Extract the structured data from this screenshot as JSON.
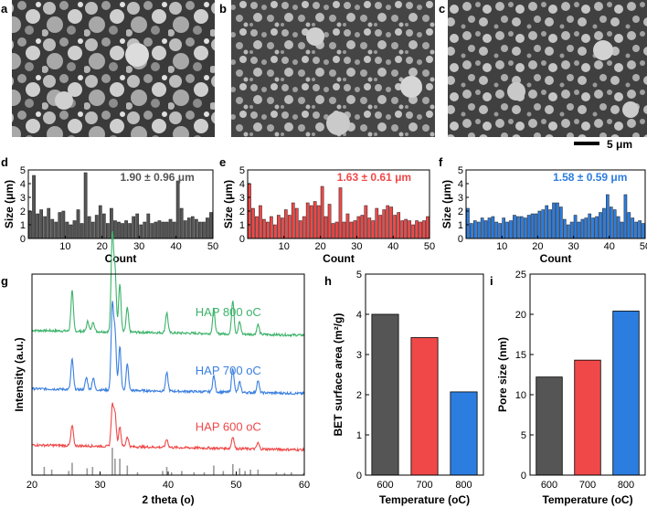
{
  "panel_labels": {
    "a": "a",
    "b": "b",
    "c": "c",
    "d": "d",
    "e": "e",
    "f": "f",
    "g": "g",
    "h": "h",
    "i": "i"
  },
  "scale_bar": "5 μm",
  "colors": {
    "p600": "#555555",
    "p700": "#f04848",
    "p800": "#2c7de0",
    "xrd700": "#3a7fe0",
    "xrd800": "#3cb36a",
    "ref": "#999999",
    "sem_bg": "#3a3a3a"
  },
  "chart_data": [
    {
      "id": "d",
      "type": "bar",
      "title": "",
      "xlabel": "Count",
      "ylabel": "Size (μm)",
      "xlim": [
        0,
        50
      ],
      "ylim": [
        0,
        5
      ],
      "xticks": [
        "10",
        "20",
        "30",
        "40",
        "50"
      ],
      "yticks": [
        "0",
        "1",
        "2",
        "3",
        "4",
        "5"
      ],
      "annotation": "1.90 ± 0.96 μm",
      "color": "#555555",
      "values": [
        2.0,
        4.6,
        1.8,
        2.1,
        1.6,
        2.2,
        1.4,
        1.2,
        1.9,
        2.0,
        1.2,
        1.0,
        1.3,
        2.1,
        1.1,
        4.8,
        1.6,
        1.2,
        1.7,
        2.4,
        1.8,
        1.1,
        2.2,
        1.3,
        1.2,
        1.1,
        1.3,
        1.1,
        1.6,
        1.8,
        1.0,
        1.2,
        1.8,
        1.1,
        1.2,
        1.3,
        1.2,
        1.2,
        1.4,
        1.2,
        4.2,
        2.2,
        1.3,
        1.5,
        1.6,
        1.4,
        1.2,
        1.2,
        1.5,
        1.9
      ]
    },
    {
      "id": "e",
      "type": "bar",
      "title": "",
      "xlabel": "Count",
      "ylabel": "Size (μm)",
      "xlim": [
        0,
        50
      ],
      "ylim": [
        0,
        5
      ],
      "xticks": [
        "10",
        "20",
        "30",
        "40",
        "50"
      ],
      "yticks": [
        "0",
        "1",
        "2",
        "3",
        "4",
        "5"
      ],
      "annotation": "1.63 ± 0.61 μm",
      "color": "#f04848",
      "values": [
        4.0,
        2.2,
        1.6,
        2.4,
        1.4,
        1.2,
        1.6,
        1.0,
        1.7,
        1.5,
        2.1,
        1.7,
        2.6,
        2.2,
        1.3,
        1.6,
        2.6,
        2.4,
        2.7,
        2.4,
        3.8,
        1.6,
        2.5,
        1.1,
        1.2,
        3.7,
        1.2,
        1.8,
        1.2,
        1.3,
        1.6,
        1.7,
        2.4,
        1.5,
        1.3,
        2.2,
        1.7,
        2.1,
        2.4,
        2.3,
        1.7,
        1.9,
        1.3,
        1.4,
        1.3,
        1.0,
        1.3,
        1.2,
        1.3,
        1.6
      ]
    },
    {
      "id": "f",
      "type": "bar",
      "title": "",
      "xlabel": "Count",
      "ylabel": "Size (μm)",
      "xlim": [
        0,
        50
      ],
      "ylim": [
        0,
        5
      ],
      "xticks": [
        "10",
        "20",
        "30",
        "40",
        "50"
      ],
      "yticks": [
        "0",
        "1",
        "2",
        "3",
        "4",
        "5"
      ],
      "annotation": "1.58 ± 0.59 μm",
      "color": "#2c7de0",
      "values": [
        2.2,
        1.1,
        1.3,
        1.2,
        1.5,
        1.3,
        1.5,
        1.6,
        1.2,
        1.1,
        1.5,
        1.2,
        1.3,
        1.7,
        1.6,
        1.6,
        1.5,
        1.7,
        1.8,
        1.8,
        2.0,
        2.1,
        2.4,
        2.1,
        2.6,
        2.6,
        2.3,
        1.4,
        1.0,
        1.2,
        1.7,
        1.2,
        1.4,
        1.5,
        1.8,
        1.5,
        1.6,
        1.9,
        2.2,
        3.2,
        2.3,
        2.1,
        1.6,
        1.2,
        3.2,
        1.9,
        1.5,
        1.2,
        1.3,
        1.1
      ]
    },
    {
      "id": "g",
      "type": "line",
      "title": "",
      "xlabel": "2 theta (o)",
      "ylabel": "Intensity (a.u.)",
      "xlim": [
        20,
        60
      ],
      "xticks": [
        "20",
        "30",
        "40",
        "50",
        "60"
      ],
      "series": [
        {
          "name": "HAP 800 oC",
          "color": "#3cb36a",
          "offset": 0.72,
          "peaks": [
            [
              25.9,
              0.2
            ],
            [
              28.2,
              0.05
            ],
            [
              29.0,
              0.05
            ],
            [
              31.8,
              0.48
            ],
            [
              32.2,
              0.3
            ],
            [
              32.9,
              0.24
            ],
            [
              34.0,
              0.12
            ],
            [
              39.8,
              0.1
            ],
            [
              46.7,
              0.12
            ],
            [
              49.5,
              0.17
            ],
            [
              50.5,
              0.06
            ],
            [
              53.2,
              0.05
            ]
          ]
        },
        {
          "name": "HAP 700 oC",
          "color": "#3a7fe0",
          "offset": 0.43,
          "peaks": [
            [
              25.9,
              0.15
            ],
            [
              28.0,
              0.06
            ],
            [
              29.0,
              0.06
            ],
            [
              31.8,
              0.42
            ],
            [
              32.2,
              0.28
            ],
            [
              32.9,
              0.22
            ],
            [
              34.0,
              0.13
            ],
            [
              39.8,
              0.09
            ],
            [
              46.7,
              0.08
            ],
            [
              49.5,
              0.12
            ],
            [
              50.5,
              0.05
            ],
            [
              53.2,
              0.06
            ]
          ]
        },
        {
          "name": "HAP 600 oC",
          "color": "#f04848",
          "offset": 0.15,
          "peaks": [
            [
              25.9,
              0.1
            ],
            [
              31.8,
              0.2
            ],
            [
              32.2,
              0.16
            ],
            [
              32.9,
              0.1
            ],
            [
              34.0,
              0.05
            ],
            [
              39.8,
              0.04
            ],
            [
              49.5,
              0.06
            ],
            [
              53.2,
              0.03
            ]
          ]
        }
      ],
      "reference_sticks": [
        [
          21.8,
          0.3
        ],
        [
          22.9,
          0.2
        ],
        [
          25.4,
          0.15
        ],
        [
          25.9,
          0.45
        ],
        [
          28.1,
          0.25
        ],
        [
          28.9,
          0.3
        ],
        [
          31.8,
          1.0
        ],
        [
          32.2,
          0.6
        ],
        [
          32.9,
          0.6
        ],
        [
          34.0,
          0.35
        ],
        [
          35.5,
          0.1
        ],
        [
          39.2,
          0.15
        ],
        [
          39.8,
          0.3
        ],
        [
          40.5,
          0.1
        ],
        [
          42.0,
          0.15
        ],
        [
          43.8,
          0.1
        ],
        [
          45.3,
          0.1
        ],
        [
          46.7,
          0.35
        ],
        [
          48.1,
          0.15
        ],
        [
          49.5,
          0.4
        ],
        [
          50.5,
          0.25
        ],
        [
          51.3,
          0.15
        ],
        [
          52.1,
          0.2
        ],
        [
          53.2,
          0.2
        ],
        [
          55.9,
          0.1
        ],
        [
          57.1,
          0.08
        ],
        [
          58.1,
          0.1
        ],
        [
          59.9,
          0.08
        ]
      ],
      "ref_color": "#999999"
    },
    {
      "id": "h",
      "type": "bar",
      "title": "",
      "xlabel": "Temperature (oC)",
      "ylabel": "BET surface area (m²/g)",
      "ylim": [
        0,
        5
      ],
      "yticks": [
        "0",
        "1",
        "2",
        "3",
        "4",
        "5"
      ],
      "categories": [
        "600",
        "700",
        "800"
      ],
      "values": [
        4.0,
        3.42,
        2.07
      ],
      "colors": [
        "#555555",
        "#f04848",
        "#2c7de0"
      ]
    },
    {
      "id": "i",
      "type": "bar",
      "title": "",
      "xlabel": "Temperature (oC)",
      "ylabel": "Pore size (nm)",
      "ylim": [
        0,
        25
      ],
      "yticks": [
        "0",
        "5",
        "10",
        "15",
        "20",
        "25"
      ],
      "categories": [
        "600",
        "700",
        "800"
      ],
      "values": [
        12.2,
        14.3,
        20.4
      ],
      "colors": [
        "#555555",
        "#f04848",
        "#2c7de0"
      ]
    }
  ]
}
